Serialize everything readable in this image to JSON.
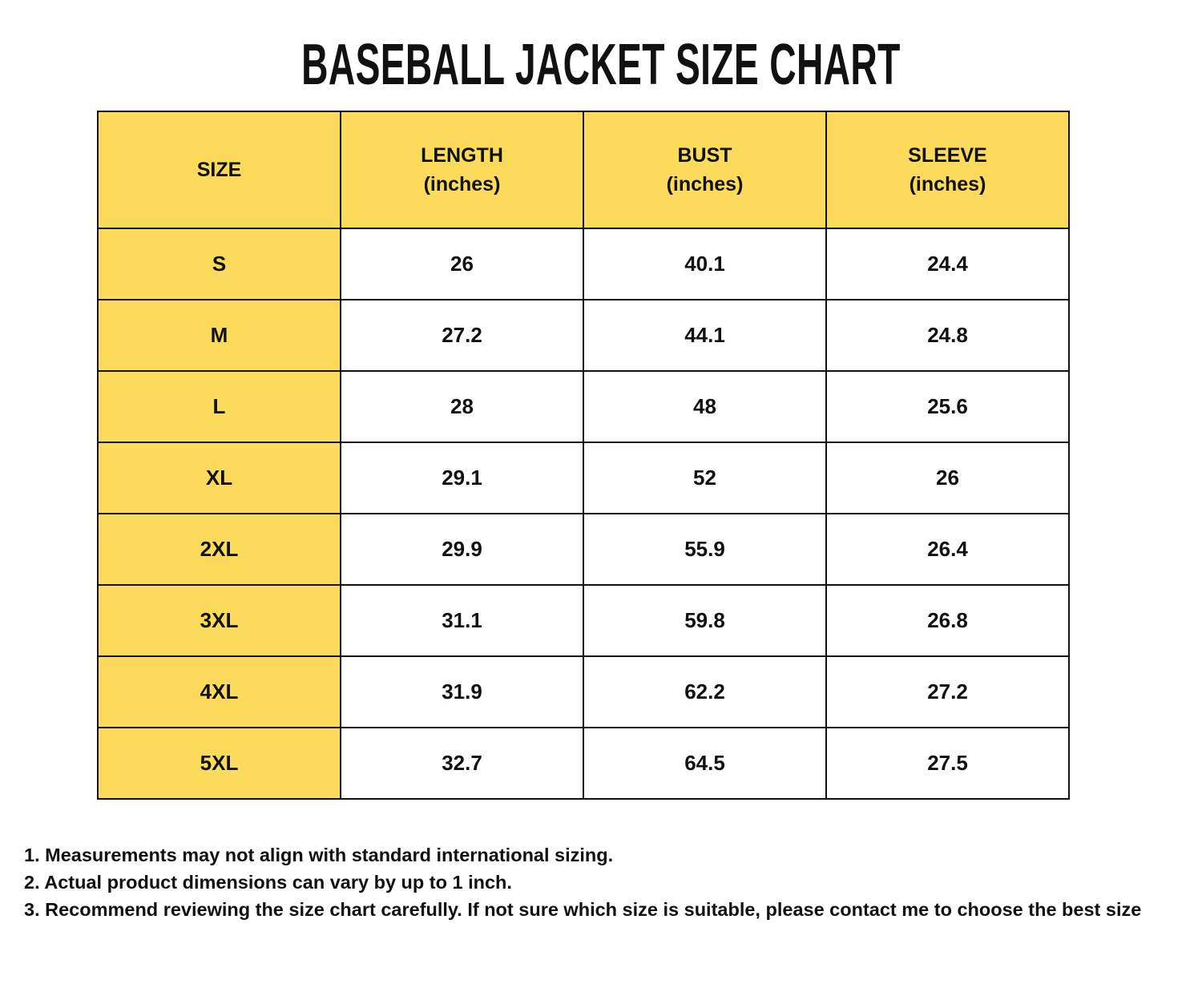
{
  "title": "BASEBALL JACKET SIZE CHART",
  "colors": {
    "header_bg": "#FCDB5C",
    "border": "#111111",
    "text": "#111111",
    "page_bg": "#FFFFFF"
  },
  "table": {
    "headers": [
      {
        "label": "SIZE",
        "sub": ""
      },
      {
        "label": "LENGTH",
        "sub": "(inches)"
      },
      {
        "label": "BUST",
        "sub": "(inches)"
      },
      {
        "label": "SLEEVE",
        "sub": "(inches)"
      }
    ],
    "rows": [
      {
        "size": "S",
        "length": "26",
        "bust": "40.1",
        "sleeve": "24.4"
      },
      {
        "size": "M",
        "length": "27.2",
        "bust": "44.1",
        "sleeve": "24.8"
      },
      {
        "size": "L",
        "length": "28",
        "bust": "48",
        "sleeve": "25.6"
      },
      {
        "size": "XL",
        "length": "29.1",
        "bust": "52",
        "sleeve": "26"
      },
      {
        "size": "2XL",
        "length": "29.9",
        "bust": "55.9",
        "sleeve": "26.4"
      },
      {
        "size": "3XL",
        "length": "31.1",
        "bust": "59.8",
        "sleeve": "26.8"
      },
      {
        "size": "4XL",
        "length": "31.9",
        "bust": "62.2",
        "sleeve": "27.2"
      },
      {
        "size": "5XL",
        "length": "32.7",
        "bust": "64.5",
        "sleeve": "27.5"
      }
    ]
  },
  "notes": [
    "1. Measurements may not align with standard international sizing.",
    "2. Actual product dimensions can vary by up to 1 inch.",
    "3. Recommend reviewing the size chart carefully. If not sure which size is suitable, please contact me to choose the best size"
  ],
  "chart_data": {
    "type": "table",
    "title": "BASEBALL JACKET SIZE CHART",
    "columns": [
      "SIZE",
      "LENGTH (inches)",
      "BUST (inches)",
      "SLEEVE (inches)"
    ],
    "rows": [
      [
        "S",
        26,
        40.1,
        24.4
      ],
      [
        "M",
        27.2,
        44.1,
        24.8
      ],
      [
        "L",
        28,
        48,
        25.6
      ],
      [
        "XL",
        29.1,
        52,
        26
      ],
      [
        "2XL",
        29.9,
        55.9,
        26.4
      ],
      [
        "3XL",
        31.1,
        59.8,
        26.8
      ],
      [
        "4XL",
        31.9,
        62.2,
        27.2
      ],
      [
        "5XL",
        32.7,
        64.5,
        27.5
      ]
    ],
    "layout_hints": {
      "header_fill": "#FCDB5C",
      "first_column_fill": "#FCDB5C",
      "body_fill": "#FFFFFF",
      "grid": true
    }
  }
}
